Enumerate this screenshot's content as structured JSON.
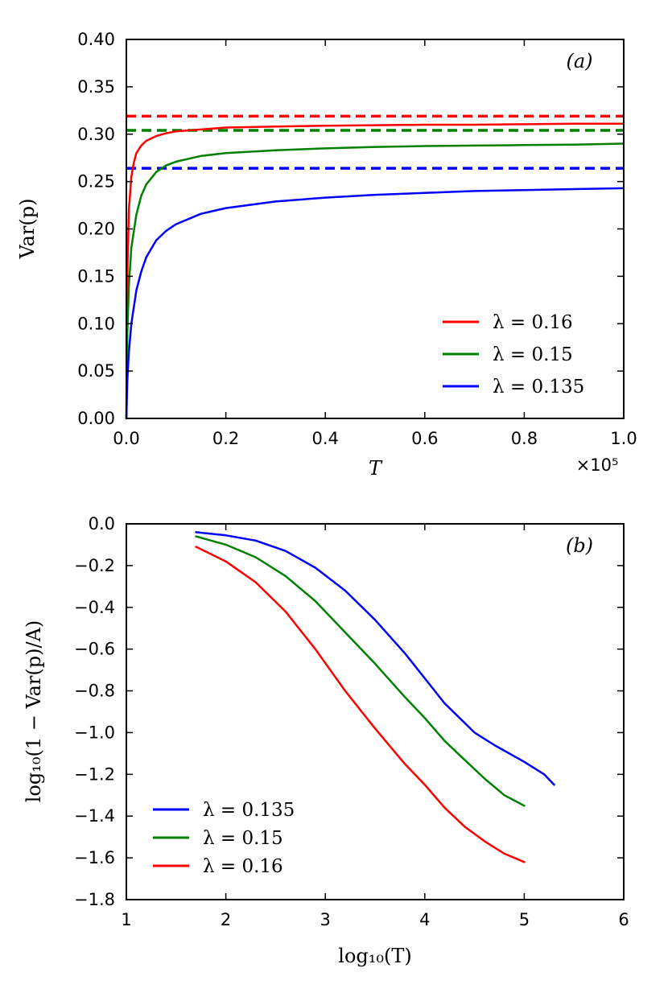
{
  "chart_data": [
    {
      "type": "line",
      "panel": "(a)",
      "xlabel": "T",
      "ylabel": "Var(p)",
      "x_scale_label": "×10⁵",
      "xlim": [
        0,
        1.0
      ],
      "ylim": [
        0,
        0.4
      ],
      "xticks": [
        "0.0",
        "0.2",
        "0.4",
        "0.6",
        "0.8",
        "1.0"
      ],
      "yticks": [
        "0.00",
        "0.05",
        "0.10",
        "0.15",
        "0.20",
        "0.25",
        "0.30",
        "0.35",
        "0.40"
      ],
      "legend_position": "bottom-right",
      "series": [
        {
          "name": "λ = 0.16",
          "color": "#ff0000",
          "x": [
            0,
            0.002,
            0.005,
            0.01,
            0.015,
            0.02,
            0.03,
            0.04,
            0.06,
            0.08,
            0.1,
            0.15,
            0.2,
            0.3,
            0.4,
            0.5,
            0.6,
            0.7,
            0.8,
            0.9,
            1.0
          ],
          "y": [
            0,
            0.15,
            0.22,
            0.255,
            0.27,
            0.28,
            0.288,
            0.293,
            0.298,
            0.301,
            0.303,
            0.305,
            0.307,
            0.308,
            0.309,
            0.3095,
            0.31,
            0.31,
            0.3105,
            0.311,
            0.311
          ]
        },
        {
          "name": "λ = 0.15",
          "color": "#008000",
          "x": [
            0,
            0.002,
            0.005,
            0.01,
            0.02,
            0.03,
            0.04,
            0.06,
            0.08,
            0.1,
            0.15,
            0.2,
            0.3,
            0.4,
            0.5,
            0.6,
            0.7,
            0.8,
            0.9,
            1.0
          ],
          "y": [
            0,
            0.09,
            0.14,
            0.18,
            0.215,
            0.235,
            0.247,
            0.26,
            0.267,
            0.271,
            0.277,
            0.28,
            0.283,
            0.285,
            0.2865,
            0.2875,
            0.288,
            0.2885,
            0.289,
            0.29
          ]
        },
        {
          "name": "λ = 0.135",
          "color": "#0000ff",
          "x": [
            0,
            0.002,
            0.005,
            0.01,
            0.02,
            0.03,
            0.04,
            0.06,
            0.08,
            0.1,
            0.15,
            0.2,
            0.3,
            0.4,
            0.5,
            0.6,
            0.7,
            0.8,
            0.9,
            1.0
          ],
          "y": [
            0,
            0.04,
            0.07,
            0.1,
            0.135,
            0.155,
            0.17,
            0.188,
            0.198,
            0.205,
            0.216,
            0.222,
            0.229,
            0.233,
            0.236,
            0.238,
            0.24,
            0.241,
            0.242,
            0.243
          ]
        }
      ],
      "reference_lines": [
        {
          "color": "#ff0000",
          "y": 0.319,
          "style": "dashed"
        },
        {
          "color": "#008000",
          "y": 0.304,
          "style": "dashed"
        },
        {
          "color": "#0000ff",
          "y": 0.264,
          "style": "dashed"
        }
      ]
    },
    {
      "type": "line",
      "panel": "(b)",
      "xlabel": "log₁₀(T)",
      "ylabel": "log₁₀(1 − Var(p)/A)",
      "xlim": [
        1,
        6
      ],
      "ylim": [
        -1.8,
        0.0
      ],
      "xticks": [
        "1",
        "2",
        "3",
        "4",
        "5",
        "6"
      ],
      "yticks": [
        "0.0",
        "−0.2",
        "−0.4",
        "−0.6",
        "−0.8",
        "−1.0",
        "−1.2",
        "−1.4",
        "−1.6",
        "−1.8"
      ],
      "legend_position": "bottom-left",
      "series": [
        {
          "name": "λ = 0.135",
          "color": "#0000ff",
          "x": [
            1.7,
            2.0,
            2.3,
            2.6,
            2.9,
            3.2,
            3.5,
            3.8,
            4.0,
            4.2,
            4.5,
            4.7,
            5.0,
            5.2,
            5.3
          ],
          "y": [
            -0.04,
            -0.055,
            -0.08,
            -0.13,
            -0.21,
            -0.32,
            -0.46,
            -0.62,
            -0.74,
            -0.86,
            -1.0,
            -1.06,
            -1.14,
            -1.2,
            -1.25
          ]
        },
        {
          "name": "λ = 0.15",
          "color": "#008000",
          "x": [
            1.7,
            2.0,
            2.3,
            2.6,
            2.9,
            3.2,
            3.5,
            3.8,
            4.0,
            4.2,
            4.4,
            4.6,
            4.8,
            5.0
          ],
          "y": [
            -0.06,
            -0.1,
            -0.16,
            -0.25,
            -0.37,
            -0.52,
            -0.67,
            -0.83,
            -0.93,
            -1.04,
            -1.13,
            -1.22,
            -1.3,
            -1.35
          ]
        },
        {
          "name": "λ = 0.16",
          "color": "#ff0000",
          "x": [
            1.7,
            2.0,
            2.3,
            2.6,
            2.9,
            3.2,
            3.5,
            3.8,
            4.0,
            4.2,
            4.4,
            4.6,
            4.8,
            5.0
          ],
          "y": [
            -0.11,
            -0.18,
            -0.28,
            -0.42,
            -0.6,
            -0.8,
            -0.98,
            -1.15,
            -1.25,
            -1.36,
            -1.45,
            -1.52,
            -1.58,
            -1.62
          ]
        }
      ]
    }
  ]
}
